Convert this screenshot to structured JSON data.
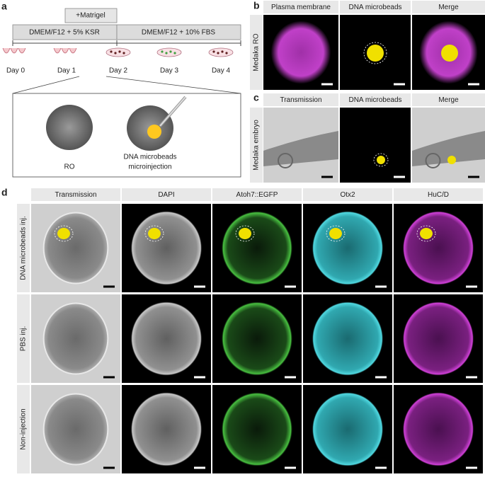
{
  "panel_a": {
    "letter": "a",
    "matrigel": "+Matrigel",
    "media": [
      "DMEM/F12 + 5% KSR",
      "DMEM/F12 + 10% FBS"
    ],
    "days": [
      "Day 0",
      "Day 1",
      "Day 2",
      "Day 3",
      "Day 4"
    ],
    "ro_label": "RO",
    "injection_label": [
      "DNA microbeads",
      "microinjection"
    ]
  },
  "panel_b": {
    "letter": "b",
    "columns": [
      "Plasma membrane",
      "DNA microbeads",
      "Merge"
    ],
    "row_label": "Medaka RO"
  },
  "panel_c": {
    "letter": "c",
    "columns": [
      "Transmission",
      "DNA microbeads",
      "Merge"
    ],
    "row_label": "Medaka embryo"
  },
  "panel_d": {
    "letter": "d",
    "columns": [
      "Transmission",
      "DAPI",
      "Atoh7::EGFP",
      "Otx2",
      "HuC/D"
    ],
    "rows": [
      "DNA microbeads inj.",
      "PBS inj.",
      "Non-injection"
    ]
  }
}
